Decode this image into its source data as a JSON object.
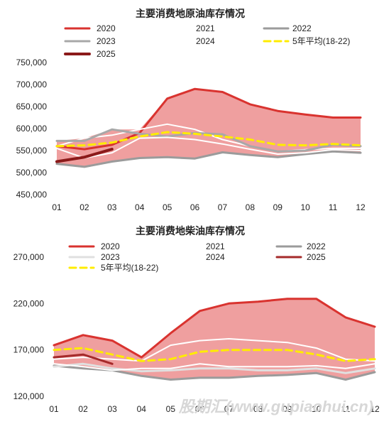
{
  "watermark": "股期汇(www.gupiaohui.cn)",
  "chart_data": [
    {
      "type": "line",
      "title": "主要消费地原油库存情况",
      "x": [
        "01",
        "02",
        "03",
        "04",
        "05",
        "06",
        "07",
        "08",
        "09",
        "10",
        "11",
        "12"
      ],
      "ylim": [
        450000,
        750000
      ],
      "yticks": [
        "750,000",
        "700,000",
        "650,000",
        "600,000",
        "550,000",
        "500,000",
        "450,000"
      ],
      "legend": [
        "2020",
        "2021",
        "2022",
        "2023",
        "2024",
        "5年平均(18-22)",
        "2025"
      ],
      "band": {
        "color": "#ef9f9f"
      },
      "series": [
        {
          "name": "2020",
          "color": "#d9332f",
          "width": 3,
          "dash": "",
          "values": [
            560000,
            553000,
            563000,
            590000,
            668000,
            690000,
            683000,
            655000,
            640000,
            632000,
            625000,
            625000
          ]
        },
        {
          "name": "2021",
          "color": "#ffffff",
          "width": 2,
          "dash": "",
          "values": [
            560000,
            578000,
            585000,
            598000,
            610000,
            598000,
            575000,
            560000,
            548000,
            552000,
            555000,
            555000
          ]
        },
        {
          "name": "2022",
          "color": "#9b9b9b",
          "width": 3,
          "dash": "",
          "values": [
            520000,
            513000,
            525000,
            533000,
            535000,
            532000,
            546000,
            540000,
            535000,
            542000,
            548000,
            545000
          ]
        },
        {
          "name": "2023",
          "color": "#a8a8a8",
          "width": 3,
          "dash": "",
          "values": [
            572000,
            572000,
            598000,
            588000,
            582000,
            590000,
            587000,
            560000,
            548000,
            550000,
            563000,
            560000
          ]
        },
        {
          "name": "2024",
          "color": "#ffffff",
          "width": 2,
          "dash": "",
          "values": [
            555000,
            533000,
            545000,
            578000,
            580000,
            575000,
            565000,
            553000,
            542000,
            545000,
            552000,
            550000
          ]
        },
        {
          "name": "5年平均(18-22)",
          "color": "#ffec00",
          "width": 3,
          "dash": "9,6",
          "values": [
            560000,
            562000,
            568000,
            582000,
            592000,
            588000,
            582000,
            575000,
            563000,
            562000,
            565000,
            562000
          ]
        },
        {
          "name": "2025",
          "color": "#8b1a1a",
          "width": 4,
          "dash": "",
          "values": [
            525000,
            535000,
            553000,
            null,
            null,
            null,
            null,
            null,
            null,
            null,
            null,
            null
          ]
        }
      ]
    },
    {
      "type": "line",
      "title": "主要消费地柴油库存情况",
      "x": [
        "01",
        "02",
        "03",
        "04",
        "05",
        "06",
        "07",
        "08",
        "09",
        "10",
        "11",
        "12"
      ],
      "ylim": [
        120000,
        270000
      ],
      "yticks": [
        "270,000",
        "220,000",
        "170,000",
        "120,000"
      ],
      "legend": [
        "2020",
        "2021",
        "2022",
        "2023",
        "2024",
        "2025",
        "5年平均(18-22)"
      ],
      "band": {
        "color": "#ef9f9f"
      },
      "series": [
        {
          "name": "2020",
          "color": "#d9332f",
          "width": 3,
          "dash": "",
          "values": [
            175000,
            186000,
            180000,
            162000,
            188000,
            212000,
            220000,
            222000,
            225000,
            225000,
            205000,
            195000
          ]
        },
        {
          "name": "2021",
          "color": "#ffffff",
          "width": 2,
          "dash": "",
          "values": [
            160000,
            162000,
            160000,
            158000,
            175000,
            180000,
            182000,
            180000,
            178000,
            172000,
            160000,
            158000
          ]
        },
        {
          "name": "2022",
          "color": "#9b9b9b",
          "width": 3,
          "dash": "",
          "values": [
            153000,
            150000,
            148000,
            142000,
            138000,
            140000,
            140000,
            142000,
            143000,
            145000,
            138000,
            146000
          ]
        },
        {
          "name": "2023",
          "color": "#e0e0e0",
          "width": 3,
          "dash": "",
          "values": [
            152000,
            155000,
            150000,
            147000,
            148000,
            150000,
            150000,
            148000,
            148000,
            150000,
            145000,
            150000
          ]
        },
        {
          "name": "2024",
          "color": "#ffffff",
          "width": 2,
          "dash": "",
          "values": [
            155000,
            152000,
            148000,
            150000,
            150000,
            155000,
            152000,
            152000,
            152000,
            153000,
            150000,
            155000
          ]
        },
        {
          "name": "2025",
          "color": "#a52a2a",
          "width": 3,
          "dash": "",
          "values": [
            162000,
            165000,
            155000,
            null,
            null,
            null,
            null,
            null,
            null,
            null,
            null,
            null
          ]
        },
        {
          "name": "5年平均(18-22)",
          "color": "#ffec00",
          "width": 3,
          "dash": "9,6",
          "values": [
            170000,
            172000,
            165000,
            158000,
            160000,
            168000,
            170000,
            170000,
            170000,
            165000,
            158000,
            160000
          ]
        }
      ]
    }
  ]
}
